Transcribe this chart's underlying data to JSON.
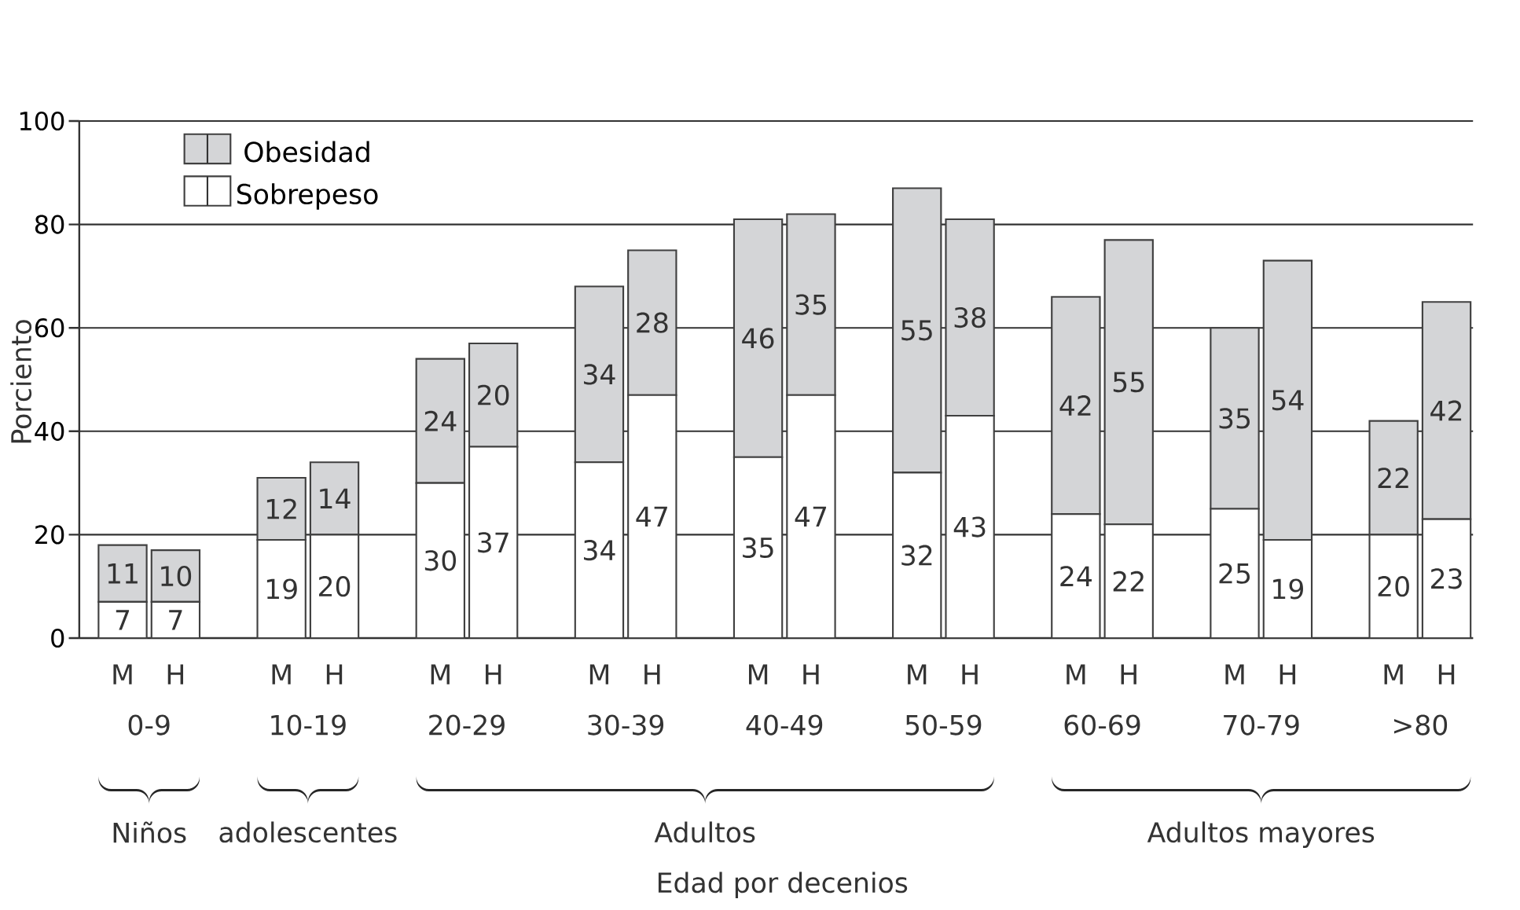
{
  "chart_data": {
    "type": "bar",
    "stacked": true,
    "ylabel": "Porciento",
    "categories": [
      "M",
      "H",
      "M",
      "H",
      "M",
      "H",
      "M",
      "H",
      "M",
      "H",
      "M",
      "H",
      "M",
      "H",
      "M",
      "H",
      "M",
      "H"
    ],
    "series": [
      {
        "name": "Sobrepeso",
        "color": "#ffffff",
        "values": [
          7,
          7,
          19,
          20,
          30,
          37,
          34,
          47,
          35,
          47,
          32,
          43,
          24,
          22,
          25,
          19,
          20,
          23
        ]
      },
      {
        "name": "Obesidad",
        "color": "#d4d5d7",
        "values": [
          11,
          10,
          12,
          14,
          24,
          20,
          34,
          28,
          46,
          35,
          55,
          38,
          42,
          55,
          35,
          54,
          22,
          42
        ]
      }
    ],
    "ylim": [
      0,
      100
    ],
    "yticks": [
      0,
      20,
      40,
      60,
      80,
      100
    ],
    "grid": "y",
    "legend": "top left",
    "data_labels": true,
    "annotations": [
      "0-9",
      "10-19",
      "20-29",
      "30-39",
      "40-49",
      "50-59",
      "60-69",
      "70-79",
      ">80",
      "Niños",
      "adolescentes",
      "Adultos",
      "Adultos mayores",
      "Edad por decenios"
    ]
  }
}
